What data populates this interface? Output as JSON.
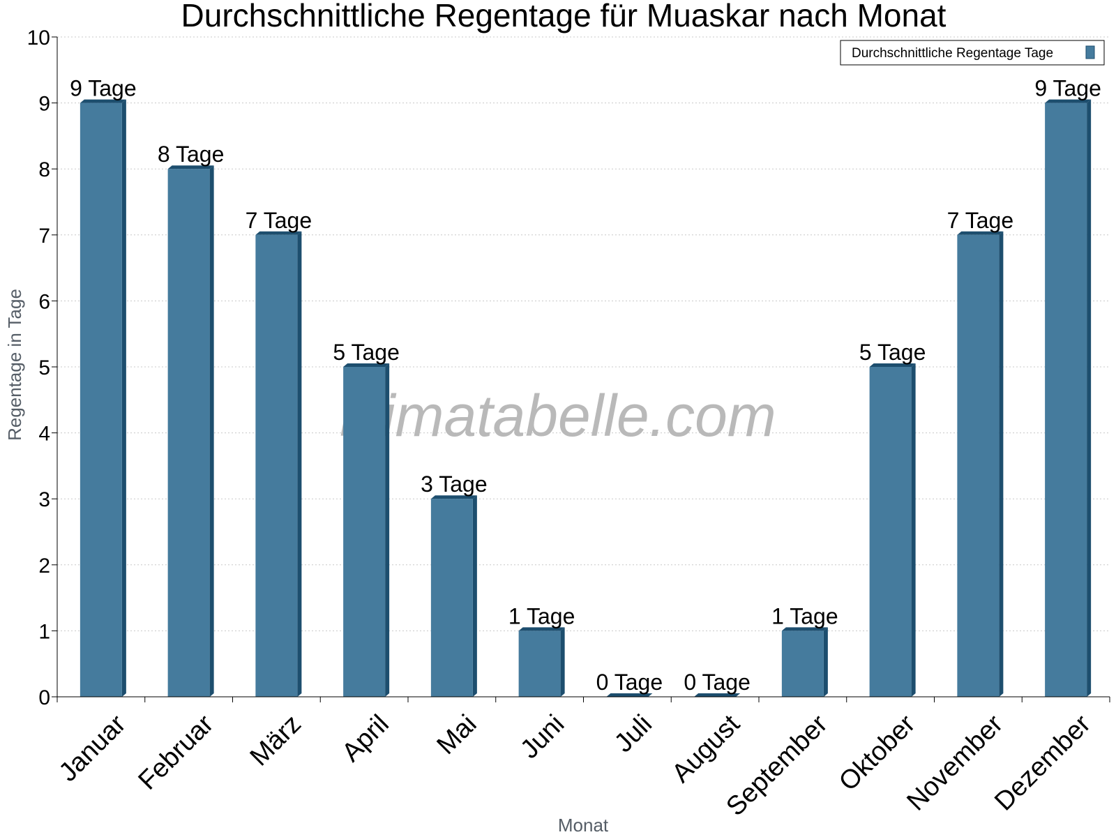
{
  "chart_data": {
    "type": "bar",
    "title": "Durchschnittliche Regentage für Muaskar nach Monat",
    "xlabel": "Monat",
    "ylabel": "Regentage in Tage",
    "ylim": [
      0,
      10
    ],
    "yticks": [
      0,
      1,
      2,
      3,
      4,
      5,
      6,
      7,
      8,
      9,
      10
    ],
    "grid": true,
    "legend_position": "top-right",
    "categories": [
      "Januar",
      "Februar",
      "März",
      "April",
      "Mai",
      "Juni",
      "Juli",
      "August",
      "September",
      "Oktober",
      "November",
      "Dezember"
    ],
    "series": [
      {
        "name": "Durchschnittliche Regentage Tage",
        "values": [
          9,
          8,
          7,
          5,
          3,
          1,
          0,
          0,
          1,
          5,
          7,
          9
        ],
        "data_labels": [
          "9 Tage",
          "8 Tage",
          "7 Tage",
          "5 Tage",
          "3 Tage",
          "1 Tage",
          "0 Tage",
          "0 Tage",
          "1 Tage",
          "5 Tage",
          "7 Tage",
          "9 Tage"
        ]
      }
    ],
    "colors": {
      "bar": "#457b9d",
      "bar_side": "#1d4e6e",
      "bar_top": "#1d4e6e"
    }
  },
  "watermark": "klimatabelle.com"
}
